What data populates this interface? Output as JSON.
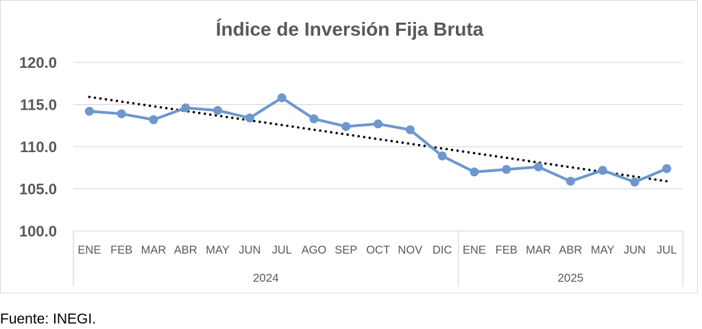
{
  "source_note": "Fuente: INEGI.",
  "chart_data": {
    "type": "line",
    "title": "Índice de Inversión Fija Bruta",
    "xlabel": "",
    "ylabel": "",
    "ylim": [
      100,
      120
    ],
    "yticks": [
      "100.0",
      "105.0",
      "110.0",
      "115.0",
      "120.0"
    ],
    "grid": true,
    "categories": [
      "ENE",
      "FEB",
      "MAR",
      "ABR",
      "MAY",
      "JUN",
      "JUL",
      "AGO",
      "SEP",
      "OCT",
      "NOV",
      "DIC",
      "ENE",
      "FEB",
      "MAR",
      "ABR",
      "MAY",
      "JUN",
      "JUL"
    ],
    "year_groups": [
      {
        "label": "2024",
        "count": 12
      },
      {
        "label": "2025",
        "count": 7
      }
    ],
    "series": [
      {
        "values": [
          114.2,
          113.9,
          113.2,
          114.6,
          114.3,
          113.4,
          115.8,
          113.3,
          112.4,
          112.7,
          112.0,
          108.9,
          107.0,
          107.3,
          107.6,
          105.9,
          107.2,
          105.8,
          107.4
        ],
        "color": "#6d97cd"
      }
    ],
    "trendline": {
      "type": "linear",
      "start": 115.9,
      "end": 105.9,
      "color": "#000000"
    }
  }
}
